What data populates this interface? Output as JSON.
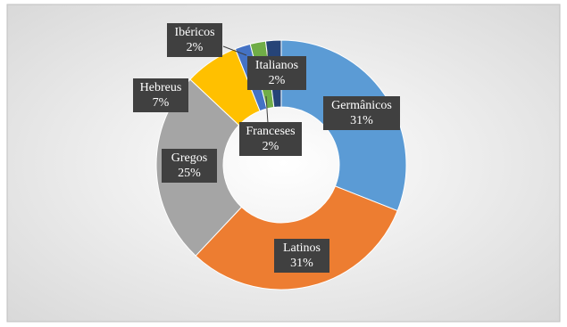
{
  "chart_data": {
    "type": "doughnut",
    "categories": [
      "Germânicos",
      "Latinos",
      "Gregos",
      "Hebreus",
      "Ibéricos",
      "Italianos",
      "Franceses"
    ],
    "values": [
      31,
      31,
      25,
      7,
      2,
      2,
      2
    ],
    "value_labels": [
      "31%",
      "31%",
      "25%",
      "7%",
      "2%",
      "2%",
      "2%"
    ],
    "colors": [
      "#5B9BD5",
      "#ED7D31",
      "#A5A5A5",
      "#FFC000",
      "#4472C4",
      "#70AD47",
      "#264478"
    ]
  }
}
